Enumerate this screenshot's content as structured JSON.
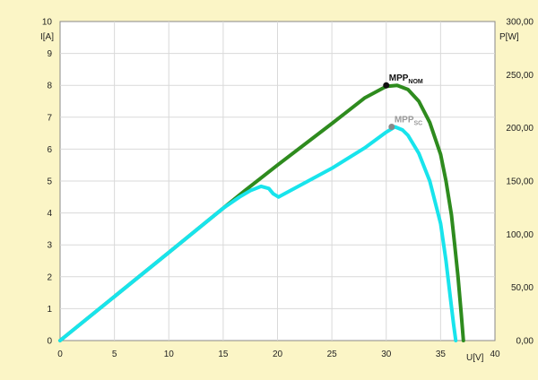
{
  "chart_data": {
    "type": "line",
    "xlabel": "U[V]",
    "ylabel_left": "I[A]",
    "ylabel_right": "P[W]",
    "xlim": [
      0,
      40
    ],
    "ylim_left": [
      0,
      10
    ],
    "ylim_right": [
      0,
      300
    ],
    "grid": true,
    "x_ticks": [
      "0",
      "5",
      "10",
      "15",
      "20",
      "25",
      "30",
      "35",
      "40"
    ],
    "y_left_ticks": [
      "0",
      "1",
      "2",
      "3",
      "4",
      "5",
      "6",
      "7",
      "8",
      "9",
      "10"
    ],
    "y_right_ticks": [
      "0,00",
      "50,00",
      "100,00",
      "150,00",
      "200,00",
      "250,00",
      "300,00"
    ],
    "colors": {
      "nominal": "#2e8b1e",
      "shaded": "#18e4ec",
      "plot_bg": "#ffffff",
      "page_bg": "#fbf5c6"
    },
    "series": [
      {
        "axis": "right",
        "color": "#2e8b1e",
        "points": [
          [
            0,
            0
          ],
          [
            5,
            41.4
          ],
          [
            10,
            82.8
          ],
          [
            15,
            124.5
          ],
          [
            17,
            141
          ],
          [
            20,
            165
          ],
          [
            25,
            204
          ],
          [
            28,
            228
          ],
          [
            30,
            239
          ],
          [
            31,
            240
          ],
          [
            32,
            236
          ],
          [
            33,
            225
          ],
          [
            34,
            205
          ],
          [
            35,
            175
          ],
          [
            35.5,
            150
          ],
          [
            36,
            118
          ],
          [
            36.3,
            90
          ],
          [
            36.6,
            60
          ],
          [
            36.9,
            25
          ],
          [
            37.1,
            0
          ]
        ]
      },
      {
        "axis": "right",
        "color": "#18e4ec",
        "points": [
          [
            0,
            0
          ],
          [
            5,
            41.4
          ],
          [
            10,
            82.8
          ],
          [
            15,
            124.5
          ],
          [
            16.5,
            135
          ],
          [
            17.5,
            141
          ],
          [
            18.5,
            145
          ],
          [
            19.2,
            143
          ],
          [
            19.6,
            138
          ],
          [
            20.1,
            135
          ],
          [
            21,
            140
          ],
          [
            25,
            162
          ],
          [
            28,
            181
          ],
          [
            30,
            196
          ],
          [
            30.8,
            201
          ],
          [
            31.5,
            198
          ],
          [
            32,
            193
          ],
          [
            33,
            176
          ],
          [
            34,
            150
          ],
          [
            35,
            110
          ],
          [
            35.5,
            75
          ],
          [
            35.9,
            40
          ],
          [
            36.2,
            15
          ],
          [
            36.4,
            0
          ]
        ]
      }
    ],
    "annotations": [
      {
        "name": "mpp-nom",
        "main": "MPP",
        "sub": "NOM",
        "x": 30,
        "y": 240,
        "marker_color": "#111111",
        "text_color": "#111111"
      },
      {
        "name": "mpp-sc",
        "main": "MPP",
        "sub": "SC",
        "x": 30.5,
        "y": 201,
        "marker_color": "#8a8a8a",
        "text_color": "#9a9a9a"
      }
    ]
  }
}
